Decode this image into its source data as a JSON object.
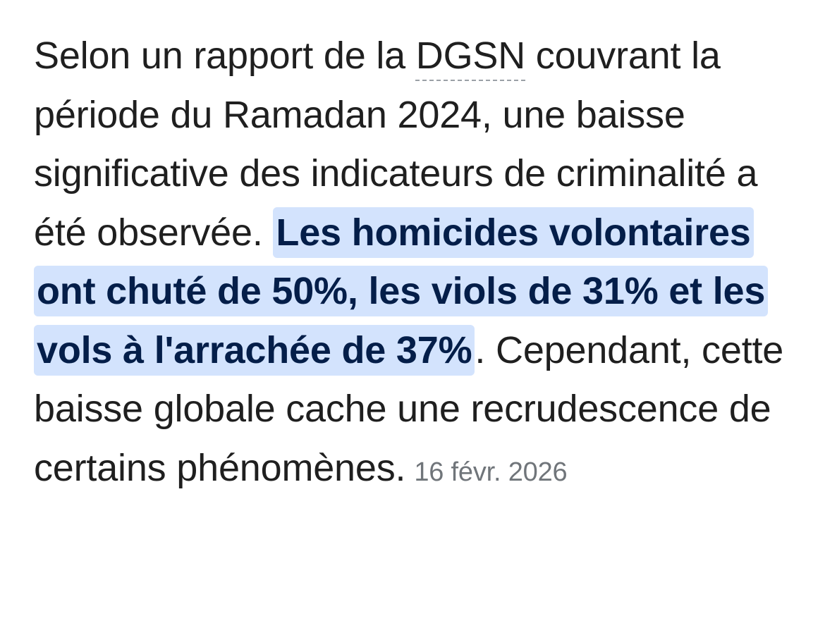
{
  "snippet": {
    "text_before_term": "Selon un rapport de la ",
    "term": "DGSN",
    "text_after_term": " couvrant la période du Ramadan 2024, une baisse significative des indicateurs de criminalité a été observée. ",
    "highlighted": "Les homicides volontaires ont chuté de 50%, les viols de 31% et les vols à l'arrachée de 37%",
    "text_after_highlight": ". Cependant, cette baisse globale cache une recrudescence de certains phénomènes.",
    "date": "16 févr. 2026"
  },
  "colors": {
    "text": "#1f1f1f",
    "highlight_background": "#d3e3fd",
    "highlight_text": "#041e49",
    "date_text": "#70757a"
  }
}
